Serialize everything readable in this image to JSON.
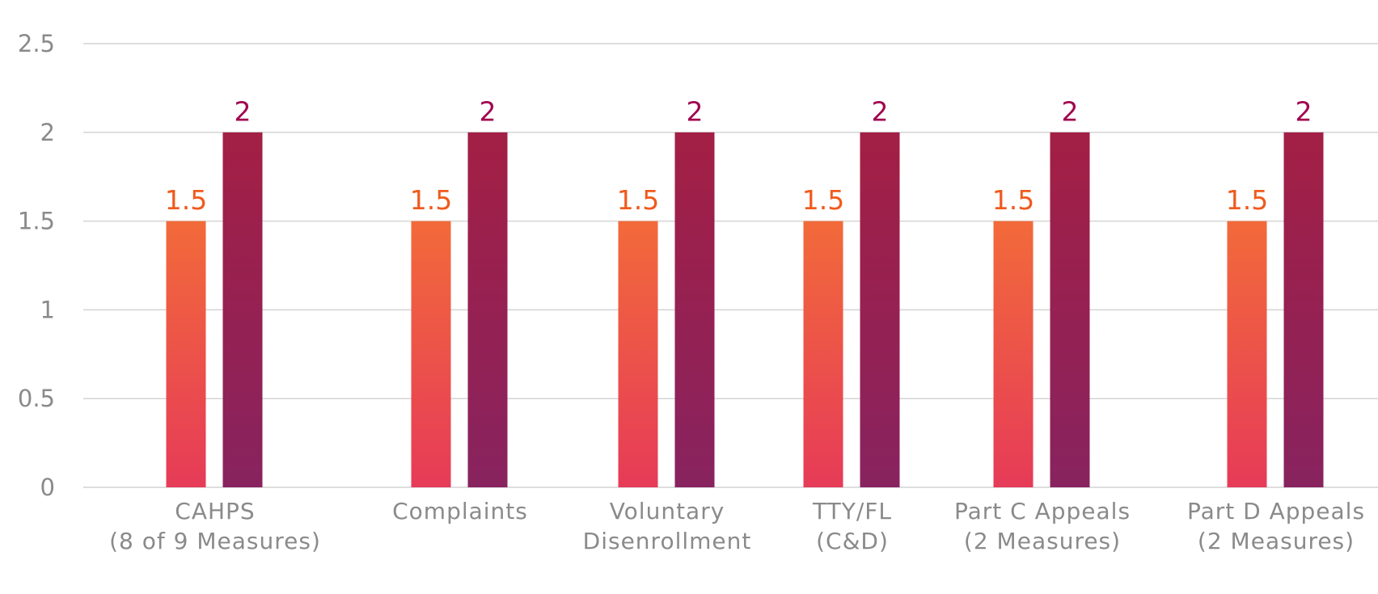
{
  "chart_data": {
    "type": "bar",
    "categories": [
      [
        "CAHPS",
        "(8 of 9 Measures)"
      ],
      [
        "Complaints"
      ],
      [
        "Voluntary",
        "Disenrollment"
      ],
      [
        "TTY/FL",
        "(C&D)"
      ],
      [
        "Part C Appeals",
        "(2 Measures)"
      ],
      [
        "Part D Appeals",
        "(2 Measures)"
      ]
    ],
    "series": [
      {
        "color": "#ee5a3f",
        "label_color": "#f05a1e",
        "values": [
          1.5,
          1.5,
          1.5,
          1.5,
          1.5,
          1.5
        ]
      },
      {
        "color": "#95204f",
        "label_color": "#a0064f",
        "values": [
          2,
          2,
          2,
          2,
          2,
          2
        ]
      }
    ],
    "ylim": [
      0,
      2.5
    ],
    "yticks": [
      0,
      0.5,
      1,
      1.5,
      2,
      2.5
    ],
    "grid": true
  }
}
